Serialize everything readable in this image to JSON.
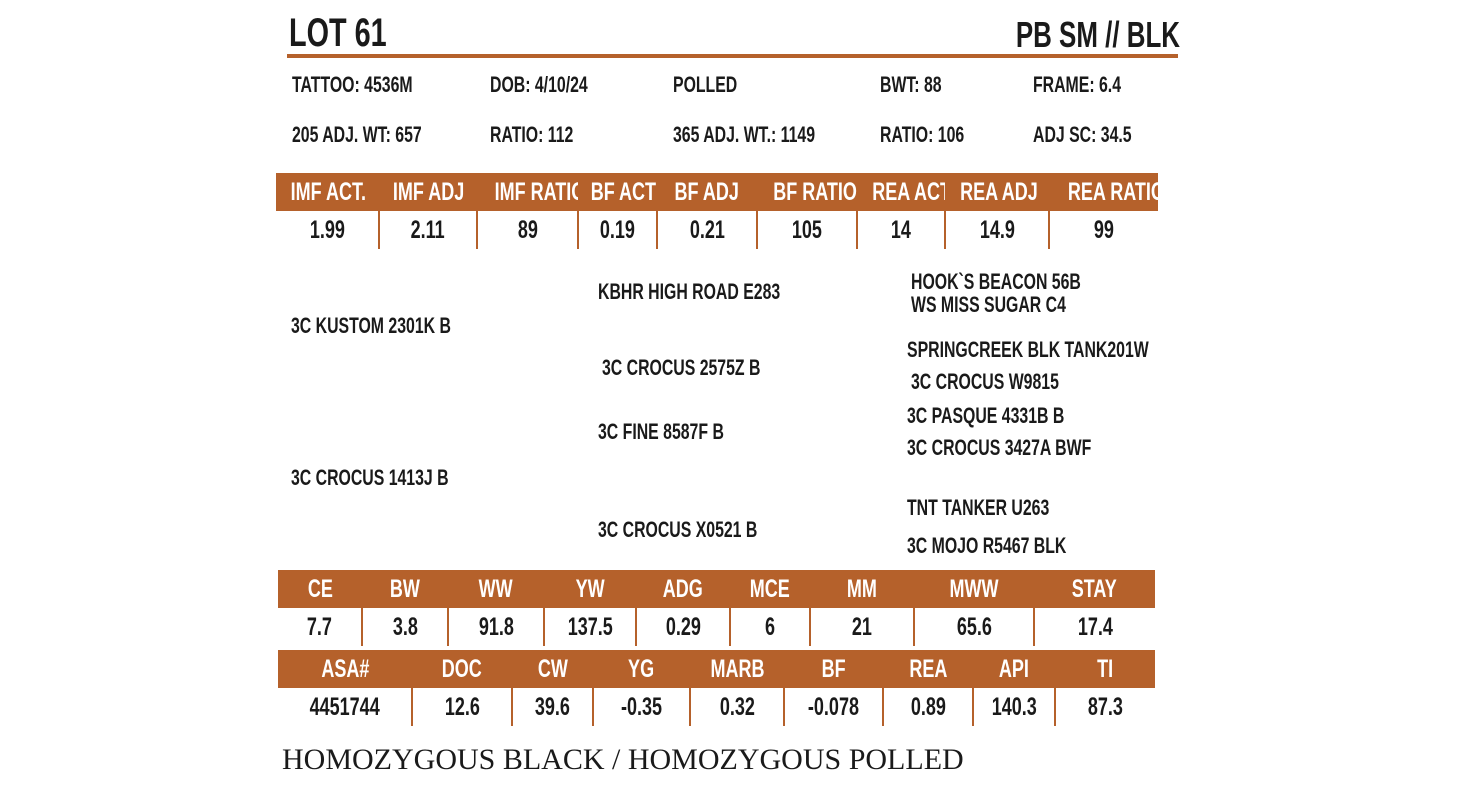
{
  "header": {
    "lot": "LOT 61",
    "breed": "PB SM //  BLK"
  },
  "info": {
    "tattoo": "TATTOO: 4536M",
    "dob": "DOB: 4/10/24",
    "polled": "POLLED",
    "bwt": "BWT: 88",
    "frame": "FRAME: 6.4",
    "adj205": "205 ADJ. WT: 657",
    "ratio205": "RATIO: 112",
    "adj365": "365 ADJ. WT.: 1149",
    "ratio365": "RATIO: 106",
    "adjsc": "ADJ SC:  34.5"
  },
  "carcass": {
    "headers": [
      "IMF ACT.",
      "IMF ADJ",
      "IMF RATIO",
      "BF ACT",
      "BF ADJ",
      "BF RATIO",
      "REA ACT",
      "REA ADJ",
      "REA RATIO"
    ],
    "values": [
      "1.99",
      "2.11",
      "89",
      "0.19",
      "0.21",
      "105",
      "14",
      "14.9",
      "99"
    ]
  },
  "pedigree": {
    "sire": "3C KUSTOM 2301K B",
    "dam": "3C CROCUS 1413J B",
    "sire_sire": "KBHR HIGH ROAD E283",
    "sire_dam": "3C CROCUS 2575Z B",
    "dam_sire": "3C FINE 8587F B",
    "dam_dam": "3C CROCUS X0521 B",
    "ss_sire": "HOOK`S BEACON 56B",
    "ss_dam": "WS MISS SUGAR C4",
    "sd_sire": "SPRINGCREEK BLK TANK201W",
    "sd_dam": "3C CROCUS W9815",
    "ds_sire": "3C PASQUE 4331B B",
    "ds_dam": "3C CROCUS 3427A BWF",
    "dd_sire": "TNT TANKER U263",
    "dd_dam": "3C MOJO R5467 BLK"
  },
  "epd1": {
    "headers": [
      "CE",
      "BW",
      "WW",
      "YW",
      "ADG",
      "MCE",
      "MM",
      "MWW",
      "STAY"
    ],
    "values": [
      "7.7",
      "3.8",
      "91.8",
      "137.5",
      "0.29",
      "6",
      "21",
      "65.6",
      "17.4"
    ]
  },
  "epd2": {
    "headers": [
      "ASA#",
      "DOC",
      "CW",
      "YG",
      "MARB",
      "BF",
      "REA",
      "API",
      "TI"
    ],
    "values": [
      "4451744",
      "12.6",
      "39.6",
      "-0.35",
      "0.32",
      "-0.078",
      "0.89",
      "140.3",
      "87.3"
    ]
  },
  "footer": {
    "note": "HOMOZYGOUS BLACK / HOMOZYGOUS POLLED"
  },
  "colors": {
    "accent": "#b5612b",
    "text": "#1a1a1a"
  }
}
